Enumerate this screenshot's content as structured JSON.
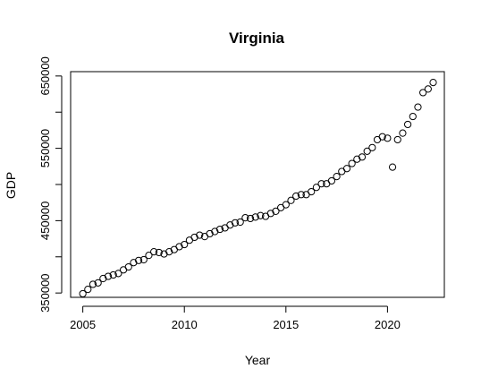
{
  "chart_data": {
    "type": "scatter",
    "title": "Virginia",
    "xlabel": "Year",
    "ylabel": "GDP",
    "xlim": [
      2004.4,
      2022.8
    ],
    "ylim": [
      344000,
      656000
    ],
    "x_ticks": [
      2005,
      2010,
      2015,
      2020
    ],
    "x_tick_labels": [
      "2005",
      "2010",
      "2015",
      "2020"
    ],
    "y_ticks": [
      350000,
      400000,
      450000,
      500000,
      550000,
      600000,
      650000
    ],
    "y_tick_labels": [
      "350000",
      "",
      "450000",
      "",
      "550000",
      "",
      "650000"
    ],
    "grid": false,
    "legend": "none",
    "series": [
      {
        "x": [
          2005.0,
          2005.25,
          2005.5,
          2005.75,
          2006.0,
          2006.25,
          2006.5,
          2006.75,
          2007.0,
          2007.25,
          2007.5,
          2007.75,
          2008.0,
          2008.25,
          2008.5,
          2008.75,
          2009.0,
          2009.25,
          2009.5,
          2009.75,
          2010.0,
          2010.25,
          2010.5,
          2010.75,
          2011.0,
          2011.25,
          2011.5,
          2011.75,
          2012.0,
          2012.25,
          2012.5,
          2012.75,
          2013.0,
          2013.25,
          2013.5,
          2013.75,
          2014.0,
          2014.25,
          2014.5,
          2014.75,
          2015.0,
          2015.25,
          2015.5,
          2015.75,
          2016.0,
          2016.25,
          2016.5,
          2016.75,
          2017.0,
          2017.25,
          2017.5,
          2017.75,
          2018.0,
          2018.25,
          2018.5,
          2018.75,
          2019.0,
          2019.25,
          2019.5,
          2019.75,
          2020.0,
          2020.25,
          2020.5,
          2020.75,
          2021.0,
          2021.25,
          2021.5,
          2021.75,
          2022.0,
          2022.25
        ],
        "y": [
          349000,
          355000,
          362000,
          364000,
          370000,
          373000,
          375000,
          377000,
          382000,
          386000,
          392000,
          395000,
          396000,
          402000,
          407000,
          406000,
          404000,
          407000,
          410000,
          414000,
          417000,
          423000,
          427000,
          430000,
          428000,
          432000,
          435000,
          438000,
          440000,
          444000,
          447000,
          448000,
          454000,
          453000,
          455000,
          457000,
          456000,
          460000,
          463000,
          468000,
          472000,
          478000,
          484000,
          486000,
          486000,
          490000,
          496000,
          501000,
          501000,
          505000,
          511000,
          518000,
          522000,
          529000,
          535000,
          538000,
          546000,
          551000,
          562000,
          566000,
          564000,
          524000,
          562000,
          571000,
          583000,
          594000,
          607000,
          627000,
          632000,
          641000
        ]
      }
    ]
  }
}
